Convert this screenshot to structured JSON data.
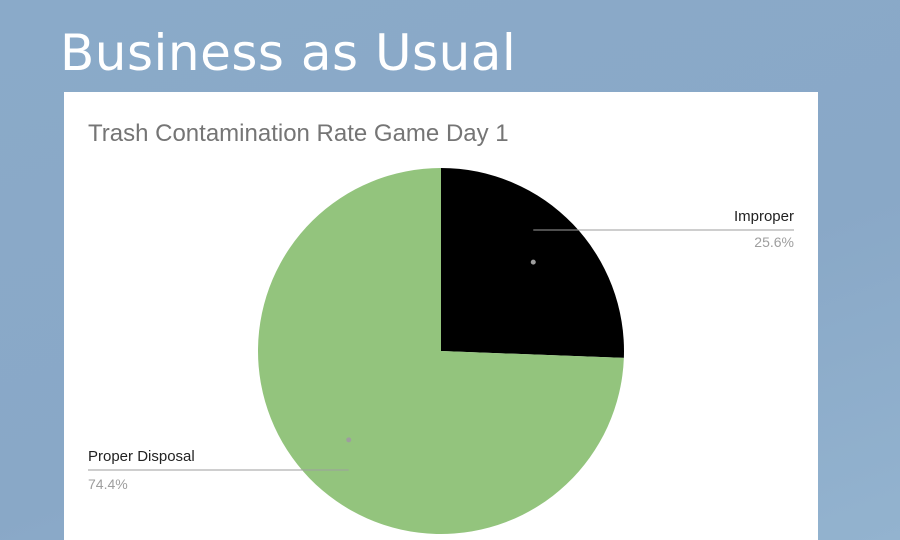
{
  "slide": {
    "title": "Business as Usual"
  },
  "chart_data": {
    "type": "pie",
    "title": "Trash Contamination Rate Game Day 1",
    "slices": [
      {
        "label": "Improper",
        "value": 25.6,
        "display": "25.6%",
        "color": "#000000"
      },
      {
        "label": "Proper Disposal",
        "value": 74.4,
        "display": "74.4%",
        "color": "#93c47d"
      }
    ],
    "start_angle_deg": 0,
    "direction": "clockwise",
    "legend": "none",
    "labels": "outside-with-leader-lines"
  }
}
